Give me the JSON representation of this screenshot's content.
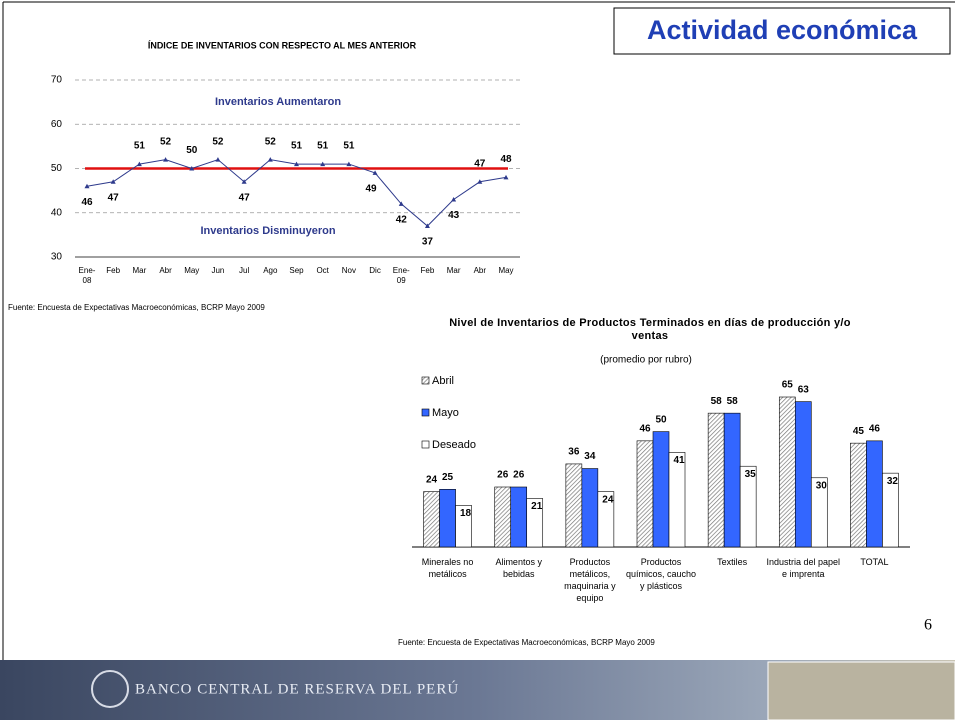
{
  "slide": {
    "title": "Actividad económica",
    "page_number": 6,
    "footer": "BANCO CENTRAL DE RESERVA DEL PERÚ"
  },
  "chart_data": [
    {
      "type": "line",
      "title": "ÍNDICE DE INVENTARIOS CON RESPECTO AL MES ANTERIOR",
      "categories": [
        "Ene-08",
        "Feb",
        "Mar",
        "Abr",
        "May",
        "Jun",
        "Jul",
        "Ago",
        "Sep",
        "Oct",
        "Nov",
        "Dic",
        "Ene-09",
        "Feb",
        "Mar",
        "Abr",
        "May"
      ],
      "values": [
        46,
        47,
        51,
        52,
        50,
        52,
        47,
        52,
        51,
        51,
        51,
        49,
        42,
        37,
        43,
        47,
        48
      ],
      "color": "#2e3a8c",
      "ylim": [
        30,
        70
      ],
      "yticks": [
        30,
        40,
        50,
        60,
        70
      ],
      "grid": true,
      "reference_line": 50,
      "reference_color": "#e01010",
      "annotations": [
        "Inventarios Aumentaron",
        "Inventarios Disminuyeron"
      ],
      "source": "Fuente: Encuesta de Expectativas Macroeconómicas, BCRP Mayo 2009"
    },
    {
      "type": "bar",
      "title": "Nivel de Inventarios de Productos Terminados en días de producción y/o ventas",
      "subtitle": "(promedio por rubro)",
      "categories": [
        "Minerales no metálicos",
        "Alimentos y bebidas",
        "Productos metálicos, maquinaria y equipo",
        "Productos químicos, caucho y plásticos",
        "Textiles",
        "Industria del papel e imprenta",
        "TOTAL"
      ],
      "series": [
        {
          "name": "Abril",
          "color": "#c8c8c8",
          "values": [
            24,
            26,
            36,
            46,
            58,
            65,
            45
          ]
        },
        {
          "name": "Mayo",
          "color": "#3366ff",
          "values": [
            25,
            26,
            34,
            50,
            58,
            63,
            46
          ]
        },
        {
          "name": "Deseado",
          "color": "#ffffff",
          "values": [
            18,
            21,
            24,
            41,
            35,
            30,
            32
          ]
        }
      ],
      "legend": "top-left",
      "source": "Fuente: Encuesta de Expectativas Macroeconómicas, BCRP Mayo 2009"
    }
  ]
}
